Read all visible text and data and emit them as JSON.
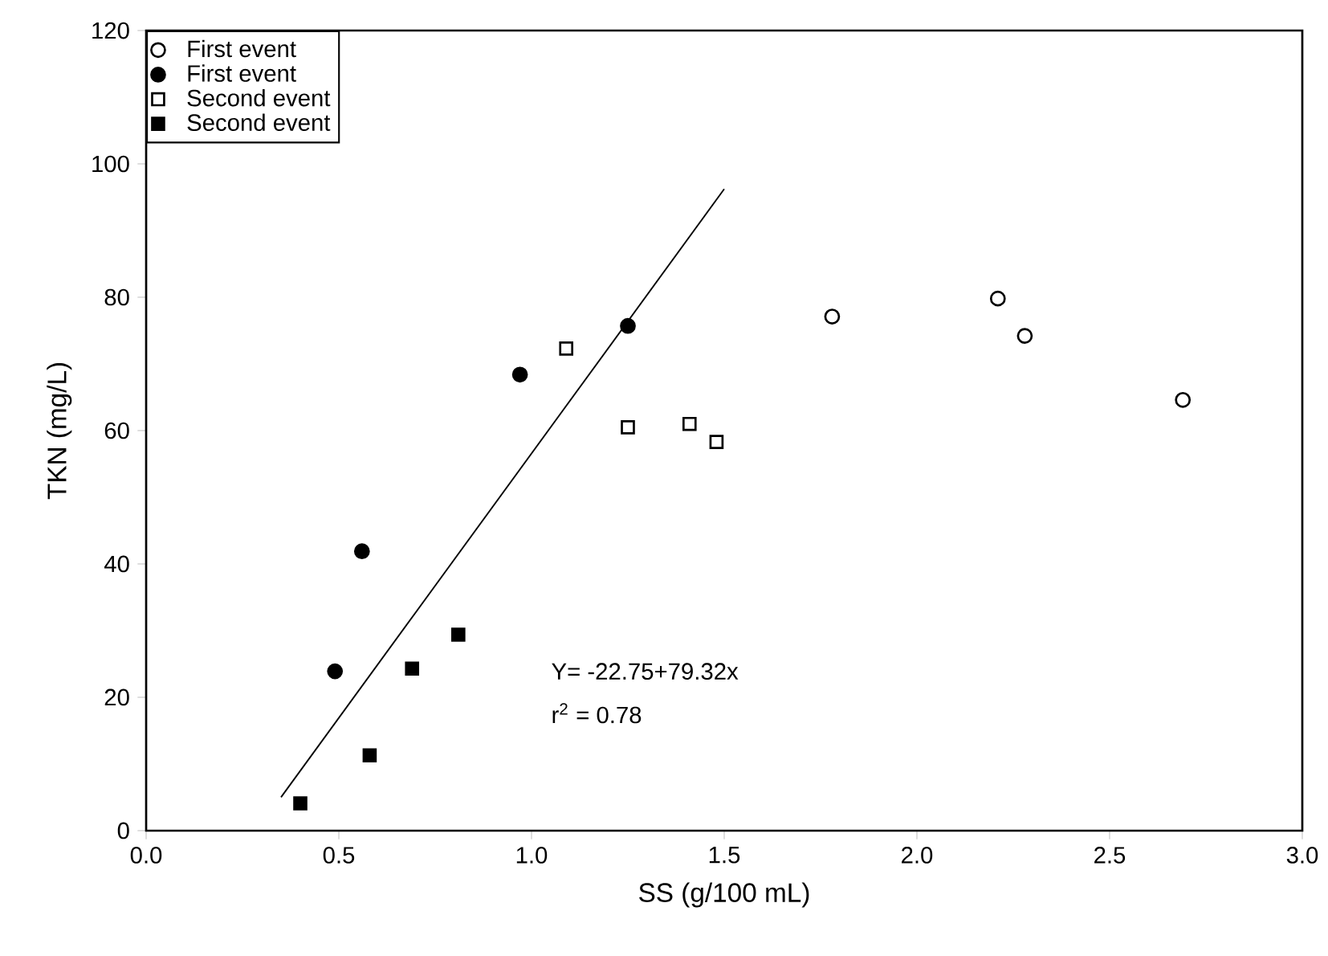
{
  "chart_data": {
    "type": "scatter",
    "xlabel": "SS (g/100 mL)",
    "ylabel": "TKN (mg/L)",
    "xlim": [
      0,
      3
    ],
    "ylim": [
      0,
      120
    ],
    "xticks": [
      {
        "value": 0,
        "label": "0.0"
      },
      {
        "value": 0.5,
        "label": "0.5"
      },
      {
        "value": 1,
        "label": "1.0"
      },
      {
        "value": 1.5,
        "label": "1.5"
      },
      {
        "value": 2,
        "label": "2.0"
      },
      {
        "value": 2.5,
        "label": "2.5"
      },
      {
        "value": 3,
        "label": "3.0"
      }
    ],
    "yticks": [
      0,
      20,
      40,
      60,
      80,
      100,
      120
    ],
    "grid": false,
    "legend": "top left",
    "annotations": [
      "Y= -22.75+79.32x",
      "r$^{2}$ = 0.78"
    ],
    "series": [
      {
        "name": "First event",
        "color": "#ffffff",
        "marker": "circle",
        "x": [
          1.78,
          2.21,
          2.28,
          2.69
        ],
        "values": [
          77.1,
          79.8,
          74.2,
          64.6
        ]
      },
      {
        "name": "First event",
        "color": "#000000",
        "marker": "circle",
        "x": [
          0.49,
          0.56,
          0.97,
          1.25
        ],
        "values": [
          23.9,
          41.9,
          68.4,
          75.7
        ]
      },
      {
        "name": "Second event",
        "color": "#ffffff",
        "marker": "square",
        "x": [
          1.09,
          1.25,
          1.41,
          1.48
        ],
        "values": [
          72.3,
          60.5,
          61.0,
          58.3
        ]
      },
      {
        "name": "Second event",
        "color": "#000000",
        "marker": "square",
        "x": [
          0.4,
          0.58,
          0.69,
          0.81
        ],
        "values": [
          4.1,
          11.3,
          24.3,
          29.4
        ]
      },
      {
        "type": "line",
        "color": "#000000",
        "marker": "none",
        "line_style": "solid",
        "x": [
          0.35,
          1.5
        ],
        "values": [
          5.01,
          96.23
        ]
      }
    ]
  }
}
